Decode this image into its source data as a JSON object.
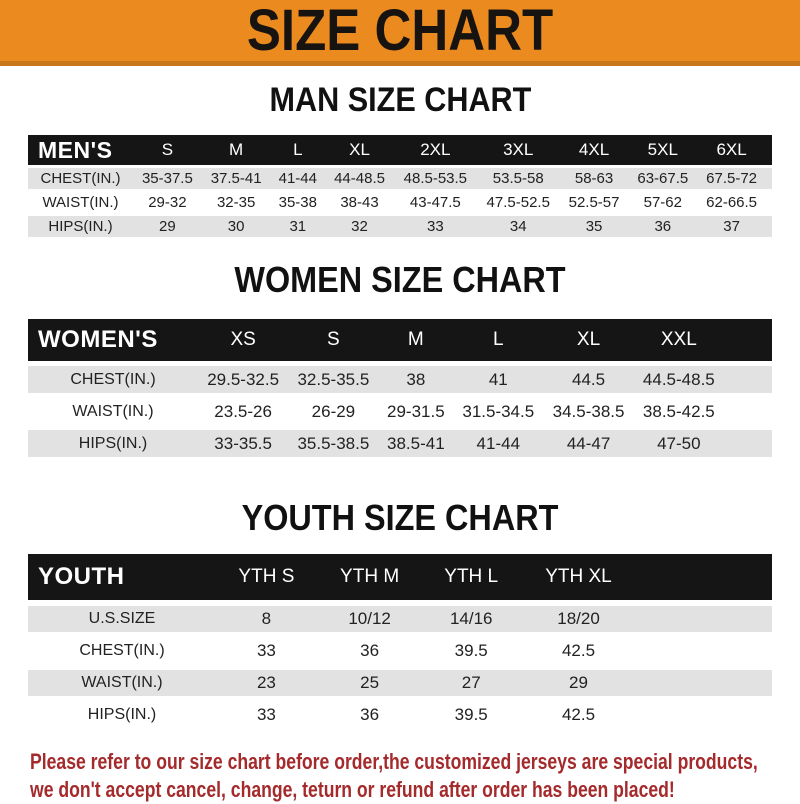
{
  "banner": {
    "title": "SIZE CHART"
  },
  "sections": [
    {
      "heading": "MAN SIZE CHART",
      "header_label": "MEN'S",
      "columns": [
        "S",
        "M",
        "L",
        "XL",
        "2XL",
        "3XL",
        "4XL",
        "5XL",
        "6XL"
      ],
      "rows": [
        {
          "label": "CHEST(IN.)",
          "values": [
            "35-37.5",
            "37.5-41",
            "41-44",
            "44-48.5",
            "48.5-53.5",
            "53.5-58",
            "58-63",
            "63-67.5",
            "67.5-72"
          ]
        },
        {
          "label": "WAIST(IN.)",
          "values": [
            "29-32",
            "32-35",
            "35-38",
            "38-43",
            "43-47.5",
            "47.5-52.5",
            "52.5-57",
            "57-62",
            "62-66.5"
          ]
        },
        {
          "label": "HIPS(IN.)",
          "values": [
            "29",
            "30",
            "31",
            "32",
            "33",
            "34",
            "35",
            "36",
            "37"
          ]
        }
      ]
    },
    {
      "heading": "WOMEN SIZE CHART",
      "header_label": "WOMEN'S",
      "columns": [
        "XS",
        "S",
        "M",
        "L",
        "XL",
        "XXL"
      ],
      "rows": [
        {
          "label": "CHEST(IN.)",
          "values": [
            "29.5-32.5",
            "32.5-35.5",
            "38",
            "41",
            "44.5",
            "44.5-48.5"
          ]
        },
        {
          "label": "WAIST(IN.)",
          "values": [
            "23.5-26",
            "26-29",
            "29-31.5",
            "31.5-34.5",
            "34.5-38.5",
            "38.5-42.5"
          ]
        },
        {
          "label": "HIPS(IN.)",
          "values": [
            "33-35.5",
            "35.5-38.5",
            "38.5-41",
            "41-44",
            "44-47",
            "47-50"
          ]
        }
      ]
    },
    {
      "heading": "YOUTH SIZE CHART",
      "header_label": "YOUTH",
      "columns": [
        "YTH S",
        "YTH M",
        "YTH L",
        "YTH XL"
      ],
      "rows": [
        {
          "label": "U.S.SIZE",
          "values": [
            "8",
            "10/12",
            "14/16",
            "18/20"
          ]
        },
        {
          "label": "CHEST(IN.)",
          "values": [
            "33",
            "36",
            "39.5",
            "42.5"
          ]
        },
        {
          "label": "WAIST(IN.)",
          "values": [
            "23",
            "25",
            "27",
            "29"
          ]
        },
        {
          "label": "HIPS(IN.)",
          "values": [
            "33",
            "36",
            "39.5",
            "42.5"
          ]
        }
      ]
    }
  ],
  "footer": {
    "line1": "Please refer to our size chart before order,the customized jerseys are special products,",
    "line2": "we don't accept cancel, change, teturn or refund after order has been placed!"
  },
  "colors": {
    "banner_bg": "#EA8A1F",
    "banner_border": "#C8771B",
    "header_bar_bg": "#151515",
    "stripe_bg": "#E2E2E2",
    "notice_text": "#A42A2C"
  }
}
